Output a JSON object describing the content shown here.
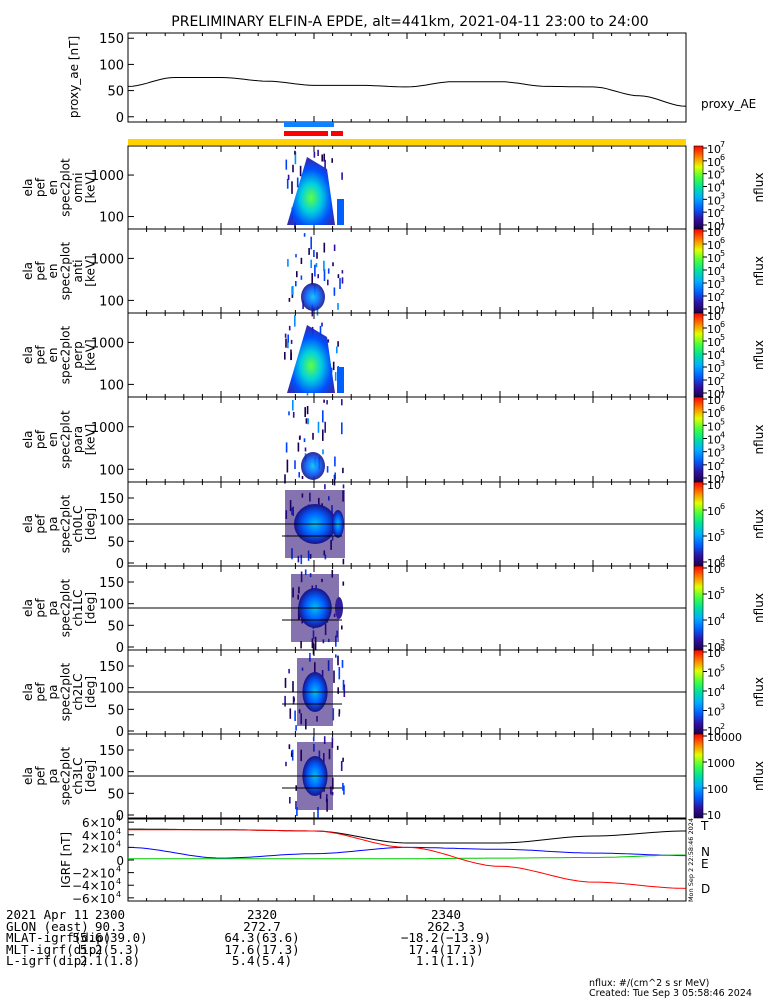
{
  "title": "PRELIMINARY ELFIN-A EPDE, alt=441km, 2021-04-11 23:00 to 24:00",
  "chart_data": [
    {
      "type": "line",
      "panel": "proxy_ae",
      "ylabel": "proxy_ae [nT]",
      "legend": [
        "proxy_AE"
      ],
      "ylim": [
        -10,
        160
      ],
      "yticks": [
        "150",
        "100",
        "50",
        "0"
      ],
      "x_minutes": [
        0,
        5,
        10,
        15,
        20,
        25,
        30,
        35,
        40,
        45,
        50,
        55,
        60
      ],
      "values": [
        58,
        75,
        75,
        68,
        60,
        60,
        57,
        67,
        67,
        58,
        57,
        40,
        20
      ]
    },
    {
      "type": "heatmap",
      "panel": "ela_pef_en_spec2plot_omni",
      "ylabel_lines": [
        "ela",
        "pef",
        "en",
        "spec2plot",
        "omni",
        "[keV]"
      ],
      "yticks": [
        "1000",
        "100"
      ],
      "colorbar": {
        "label": "nflux",
        "ticks": [
          "10",
          "10",
          "10",
          "10",
          "10",
          "10",
          "10"
        ],
        "exponents": [
          "7",
          "6",
          "5",
          "4",
          "3",
          "2",
          "1"
        ]
      }
    },
    {
      "type": "heatmap",
      "panel": "ela_pef_en_spec2plot_anti",
      "ylabel_lines": [
        "ela",
        "pef",
        "en",
        "spec2plot",
        "anti",
        "[keV]"
      ],
      "yticks": [
        "1000",
        "100"
      ],
      "colorbar": {
        "label": "nflux",
        "ticks": [
          "10",
          "10",
          "10",
          "10",
          "10",
          "10",
          "10"
        ],
        "exponents": [
          "7",
          "6",
          "5",
          "4",
          "3",
          "2",
          "1"
        ]
      }
    },
    {
      "type": "heatmap",
      "panel": "ela_pef_en_spec2plot_perp",
      "ylabel_lines": [
        "ela",
        "pef",
        "en",
        "spec2plot",
        "perp",
        "[keV]"
      ],
      "yticks": [
        "1000",
        "100"
      ],
      "colorbar": {
        "label": "nflux",
        "ticks": [
          "10",
          "10",
          "10",
          "10",
          "10",
          "10",
          "10"
        ],
        "exponents": [
          "7",
          "6",
          "5",
          "4",
          "3",
          "2",
          "1"
        ]
      }
    },
    {
      "type": "heatmap",
      "panel": "ela_pef_en_spec2plot_para",
      "ylabel_lines": [
        "ela",
        "pef",
        "en",
        "spec2plot",
        "para",
        "[keV]"
      ],
      "yticks": [
        "1000",
        "100"
      ],
      "colorbar": {
        "label": "nflux",
        "ticks": [
          "10",
          "10",
          "10",
          "10",
          "10",
          "10",
          "10"
        ],
        "exponents": [
          "7",
          "6",
          "5",
          "4",
          "3",
          "2",
          "1"
        ]
      }
    },
    {
      "type": "heatmap",
      "panel": "ela_pef_pa_spec2plot_ch0LC",
      "ylabel_lines": [
        "ela",
        "pef",
        "pa",
        "spec2plot",
        "ch0LC",
        "[deg]"
      ],
      "yticks": [
        "150",
        "100",
        "50",
        "0"
      ],
      "colorbar": {
        "label": "nflux",
        "ticks": [
          "10",
          "10",
          "10",
          "10"
        ],
        "exponents": [
          "7",
          "6",
          "5",
          "4"
        ]
      }
    },
    {
      "type": "heatmap",
      "panel": "ela_pef_pa_spec2plot_ch1LC",
      "ylabel_lines": [
        "ela",
        "pef",
        "pa",
        "spec2plot",
        "ch1LC",
        "[deg]"
      ],
      "yticks": [
        "150",
        "100",
        "50",
        "0"
      ],
      "colorbar": {
        "label": "nflux",
        "ticks": [
          "10",
          "10",
          "10",
          "10"
        ],
        "exponents": [
          "6",
          "5",
          "4",
          "3"
        ]
      }
    },
    {
      "type": "heatmap",
      "panel": "ela_pef_pa_spec2plot_ch2LC",
      "ylabel_lines": [
        "ela",
        "pef",
        "pa",
        "spec2plot",
        "ch2LC",
        "[deg]"
      ],
      "yticks": [
        "150",
        "100",
        "50",
        "0"
      ],
      "colorbar": {
        "label": "nflux",
        "ticks": [
          "10",
          "10",
          "10",
          "10",
          "10"
        ],
        "exponents": [
          "6",
          "5",
          "4",
          "3",
          "2"
        ]
      }
    },
    {
      "type": "heatmap",
      "panel": "ela_pef_pa_spec2plot_ch3LC",
      "ylabel_lines": [
        "ela",
        "pef",
        "pa",
        "spec2plot",
        "ch3LC",
        "[deg]"
      ],
      "yticks": [
        "150",
        "100",
        "50",
        "0"
      ],
      "colorbar": {
        "label": "nflux",
        "ticks": [
          "10000",
          "1000",
          "100",
          "10"
        ]
      }
    },
    {
      "type": "line",
      "panel": "IGRF",
      "ylabel": "IGRF [nT]",
      "ylim": [
        -65000,
        65000
      ],
      "yticks": [
        "6×10",
        "4×10",
        "2×10",
        "0",
        "−2×10",
        "−4×10",
        "−6×10"
      ],
      "ytick_exponent": "4",
      "legend_entries": [
        "T",
        "N",
        "E",
        "D"
      ],
      "x_minutes": [
        0,
        10,
        20,
        30,
        40,
        50,
        60
      ],
      "series": [
        {
          "name": "T",
          "color": "#000000",
          "values": [
            49000,
            48000,
            46000,
            27000,
            27000,
            38000,
            46000
          ]
        },
        {
          "name": "N",
          "color": "#0000ff",
          "values": [
            20000,
            3000,
            10000,
            20000,
            17000,
            11000,
            7000
          ]
        },
        {
          "name": "E",
          "color": "#00cc00",
          "values": [
            2000,
            2000,
            2000,
            2000,
            3000,
            4000,
            8000
          ]
        },
        {
          "name": "D",
          "color": "#ff0000",
          "values": [
            48000,
            48000,
            46000,
            20000,
            -10000,
            -35000,
            -45000
          ]
        }
      ],
      "side_text": "Mon Sep  2 22:58:46 2024"
    }
  ],
  "footer": {
    "rows": [
      {
        "label": "2021 Apr 11",
        "values": [
          "2300",
          "2320",
          "2340"
        ]
      },
      {
        "label": "GLON (east)",
        "values": [
          "90.3",
          "272.7",
          "262.3"
        ]
      },
      {
        "label": "MLAT-igrf(dip)",
        "values": [
          "55.6(39.0)",
          "64.3(63.6)",
          "−18.2(−13.9)"
        ]
      },
      {
        "label": "MLT-igrf(dip)",
        "values": [
          "5.2(5.3)",
          "17.6(17.3)",
          "17.4(17.3)"
        ]
      },
      {
        "label": "L-igrf(dip)",
        "values": [
          "2.1(1.8)",
          "5.4(5.4)",
          "1.1(1.1)"
        ]
      }
    ]
  },
  "credits": {
    "units": "nflux: #/(cm^2 s sr MeV)",
    "created": "Created: Tue Sep  3 05:58:46 2024"
  }
}
